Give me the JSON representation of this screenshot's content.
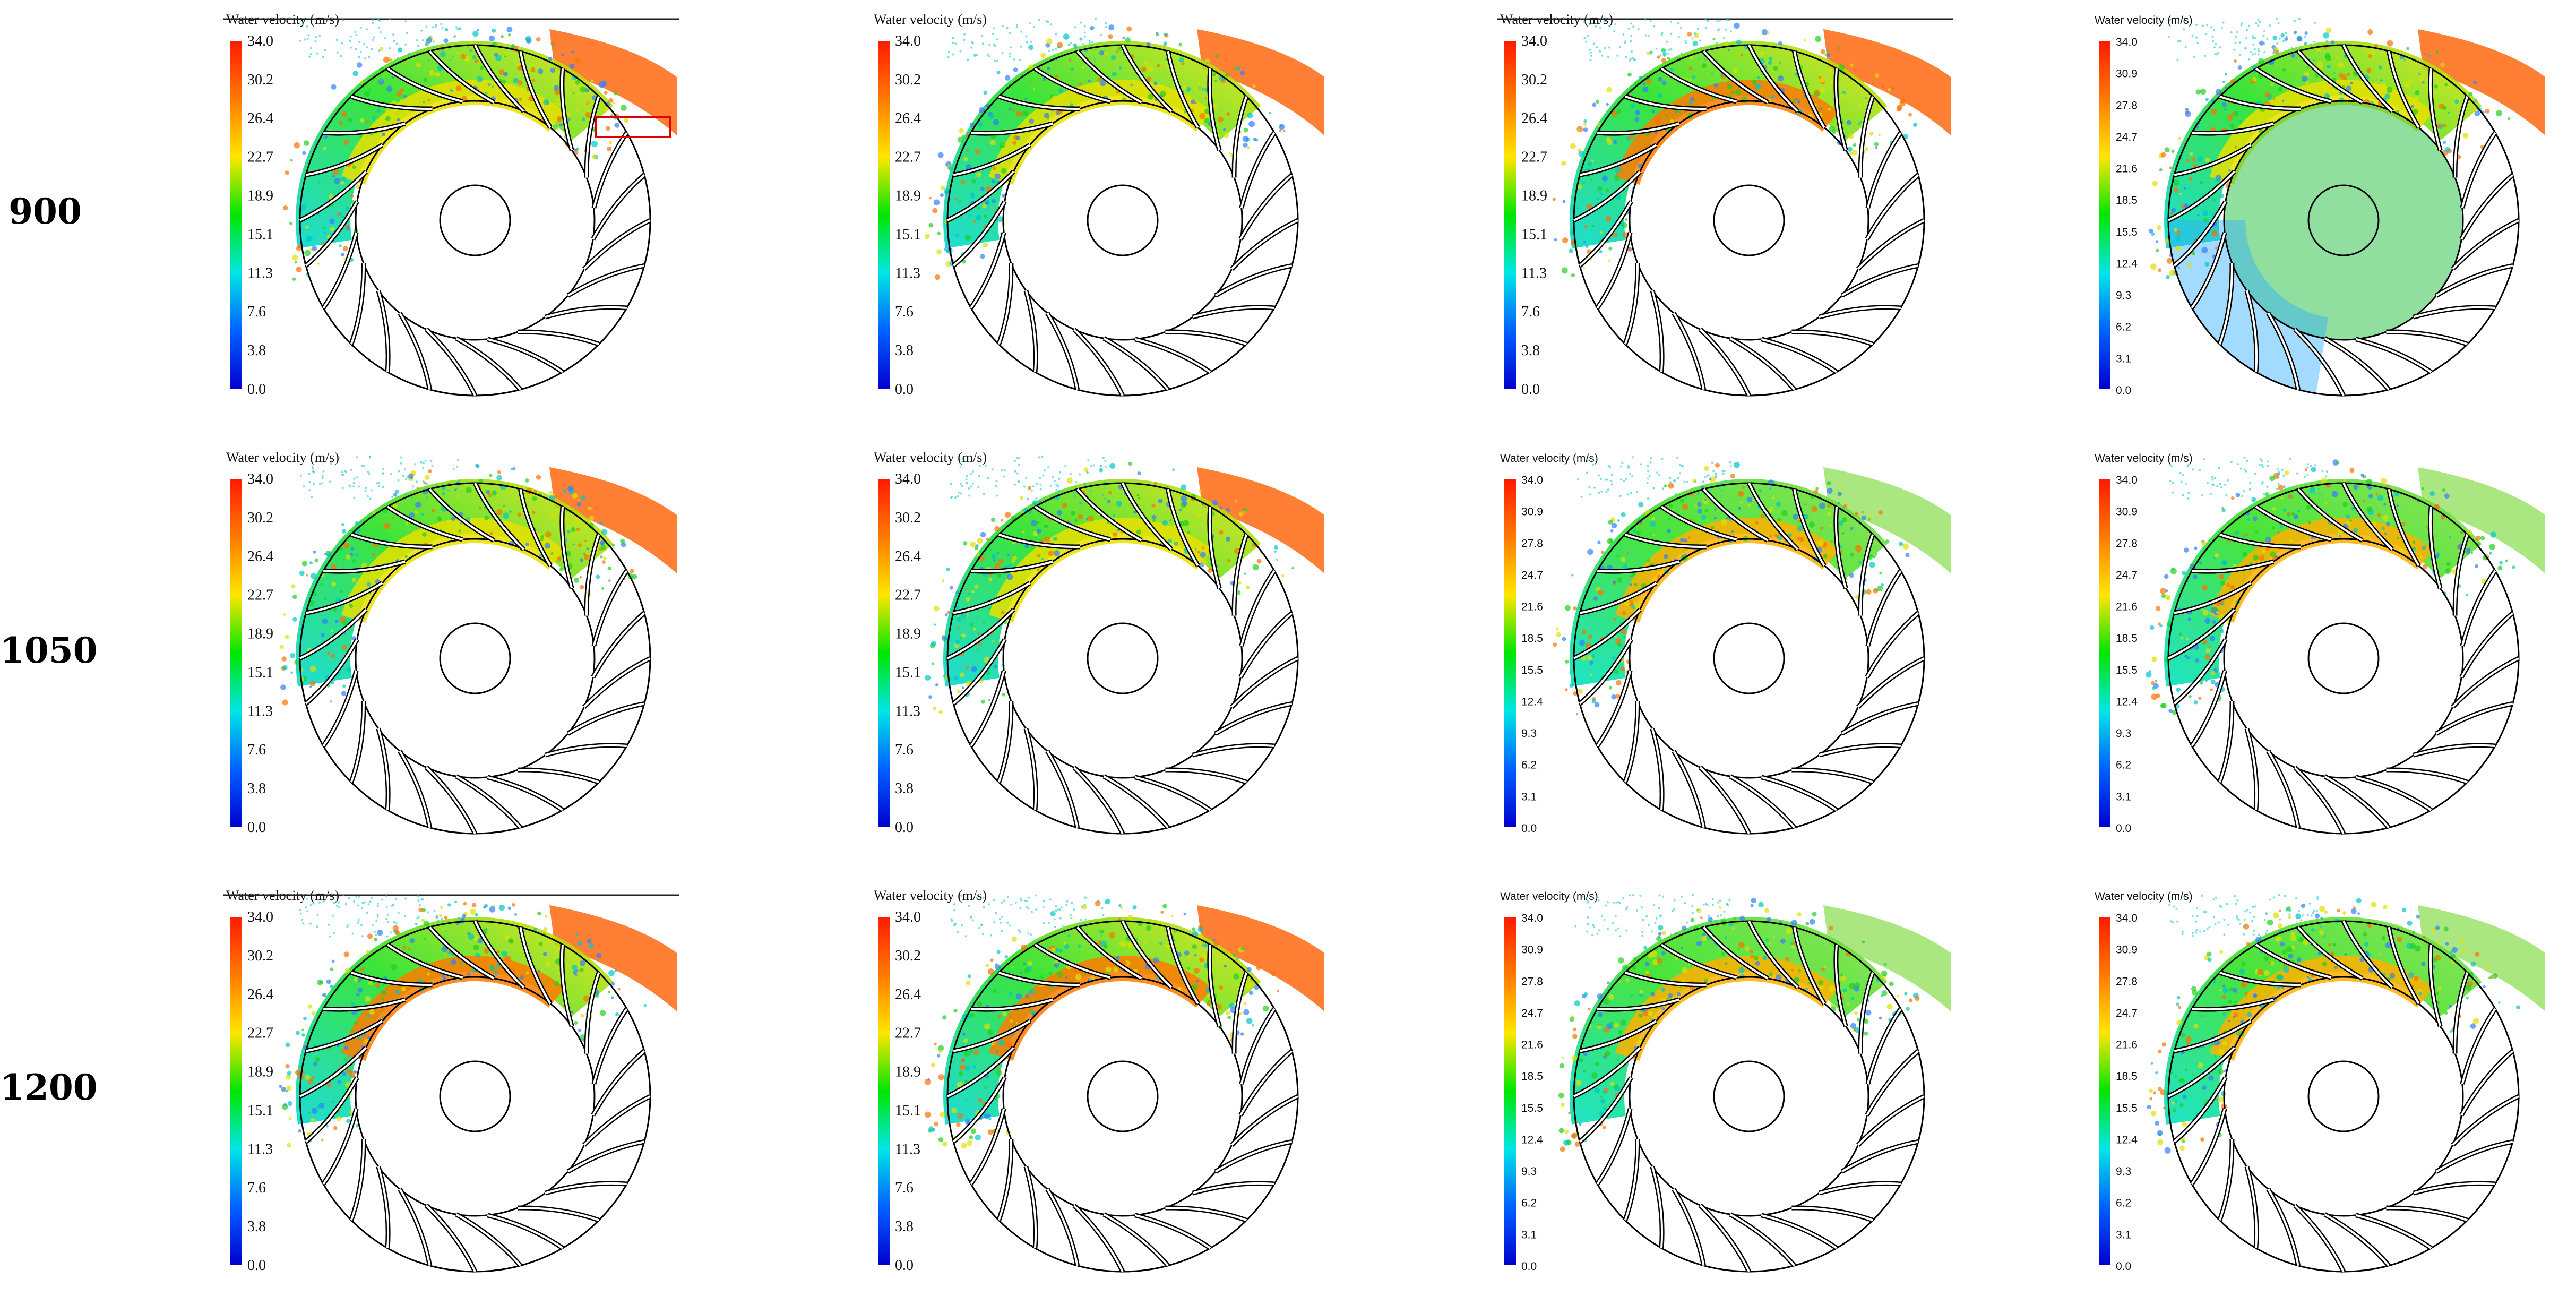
{
  "figure": {
    "row_labels": [
      "900",
      "1050",
      "1200"
    ],
    "panels": [
      {
        "id": "r1c1",
        "legend_title": "Water velocity (m/s)",
        "ticks": [
          "34.0",
          "30.2",
          "26.4",
          "22.7",
          "18.9",
          "15.1",
          "11.3",
          "7.6",
          "3.8",
          "0.0"
        ],
        "font": "serif",
        "top_line": true,
        "highlight_box": true,
        "flow": "mid"
      },
      {
        "id": "r1c2",
        "legend_title": "Water velocity (m/s)",
        "ticks": [
          "34.0",
          "30.2",
          "26.4",
          "22.7",
          "18.9",
          "15.1",
          "11.3",
          "7.6",
          "3.8",
          "0.0"
        ],
        "font": "serif",
        "top_line": false,
        "highlight_box": false,
        "flow": "mid"
      },
      {
        "id": "r1c3",
        "legend_title": "Water velocity (m/s)",
        "ticks": [
          "34.0",
          "30.2",
          "26.4",
          "22.7",
          "18.9",
          "15.1",
          "11.3",
          "7.6",
          "3.8",
          "0.0"
        ],
        "font": "serif",
        "top_line": true,
        "highlight_box": false,
        "flow": "high"
      },
      {
        "id": "r1c4",
        "legend_title": "Water velocity (m/s)",
        "ticks": [
          "34.0",
          "30.9",
          "27.8",
          "24.7",
          "21.6",
          "18.5",
          "15.5",
          "12.4",
          "9.3",
          "6.2",
          "3.1",
          "0.0"
        ],
        "font": "sans",
        "top_line": false,
        "highlight_box": false,
        "flow": "full"
      },
      {
        "id": "r2c1",
        "legend_title": "Water velocity (m/s)",
        "ticks": [
          "34.0",
          "30.2",
          "26.4",
          "22.7",
          "18.9",
          "15.1",
          "11.3",
          "7.6",
          "3.8",
          "0.0"
        ],
        "font": "serif",
        "top_line": false,
        "highlight_box": false,
        "flow": "mid"
      },
      {
        "id": "r2c2",
        "legend_title": "Water velocity (m/s)",
        "ticks": [
          "34.0",
          "30.2",
          "26.4",
          "22.7",
          "18.9",
          "15.1",
          "11.3",
          "7.6",
          "3.8",
          "0.0"
        ],
        "font": "serif",
        "top_line": false,
        "highlight_box": false,
        "flow": "mid"
      },
      {
        "id": "r2c3",
        "legend_title": "Water velocity (m/s)",
        "ticks": [
          "34.0",
          "30.9",
          "27.8",
          "24.7",
          "21.6",
          "18.5",
          "15.5",
          "12.4",
          "9.3",
          "6.2",
          "3.1",
          "0.0"
        ],
        "font": "sans",
        "top_line": false,
        "highlight_box": false,
        "flow": "low"
      },
      {
        "id": "r2c4",
        "legend_title": "Water velocity (m/s)",
        "ticks": [
          "34.0",
          "30.9",
          "27.8",
          "24.7",
          "21.6",
          "18.5",
          "15.5",
          "12.4",
          "9.3",
          "6.2",
          "3.1",
          "0.0"
        ],
        "font": "sans",
        "top_line": false,
        "highlight_box": false,
        "flow": "low"
      },
      {
        "id": "r3c1",
        "legend_title": "Water velocity (m/s)",
        "ticks": [
          "34.0",
          "30.2",
          "26.4",
          "22.7",
          "18.9",
          "15.1",
          "11.3",
          "7.6",
          "3.8",
          "0.0"
        ],
        "font": "serif",
        "top_line": true,
        "highlight_box": false,
        "flow": "high"
      },
      {
        "id": "r3c2",
        "legend_title": "Water velocity (m/s)",
        "ticks": [
          "34.0",
          "30.2",
          "26.4",
          "22.7",
          "18.9",
          "15.1",
          "11.3",
          "7.6",
          "3.8",
          "0.0"
        ],
        "font": "serif",
        "top_line": false,
        "highlight_box": false,
        "flow": "high"
      },
      {
        "id": "r3c3",
        "legend_title": "Water velocity (m/s)",
        "ticks": [
          "34.0",
          "30.9",
          "27.8",
          "24.7",
          "21.6",
          "18.5",
          "15.5",
          "12.4",
          "9.3",
          "6.2",
          "3.1",
          "0.0"
        ],
        "font": "sans",
        "top_line": false,
        "highlight_box": false,
        "flow": "low"
      },
      {
        "id": "r3c4",
        "legend_title": "Water velocity (m/s)",
        "ticks": [
          "34.0",
          "30.9",
          "27.8",
          "24.7",
          "21.6",
          "18.5",
          "15.5",
          "12.4",
          "9.3",
          "6.2",
          "3.1",
          "0.0"
        ],
        "font": "sans",
        "top_line": false,
        "highlight_box": false,
        "flow": "low"
      }
    ],
    "colors": {
      "colorbar": [
        "#ff1a00",
        "#ff7a00",
        "#ffe600",
        "#00e600",
        "#00e6e6",
        "#0060ff",
        "#0000d0"
      ],
      "outline": "#000000",
      "highlight": "#e00000"
    }
  }
}
